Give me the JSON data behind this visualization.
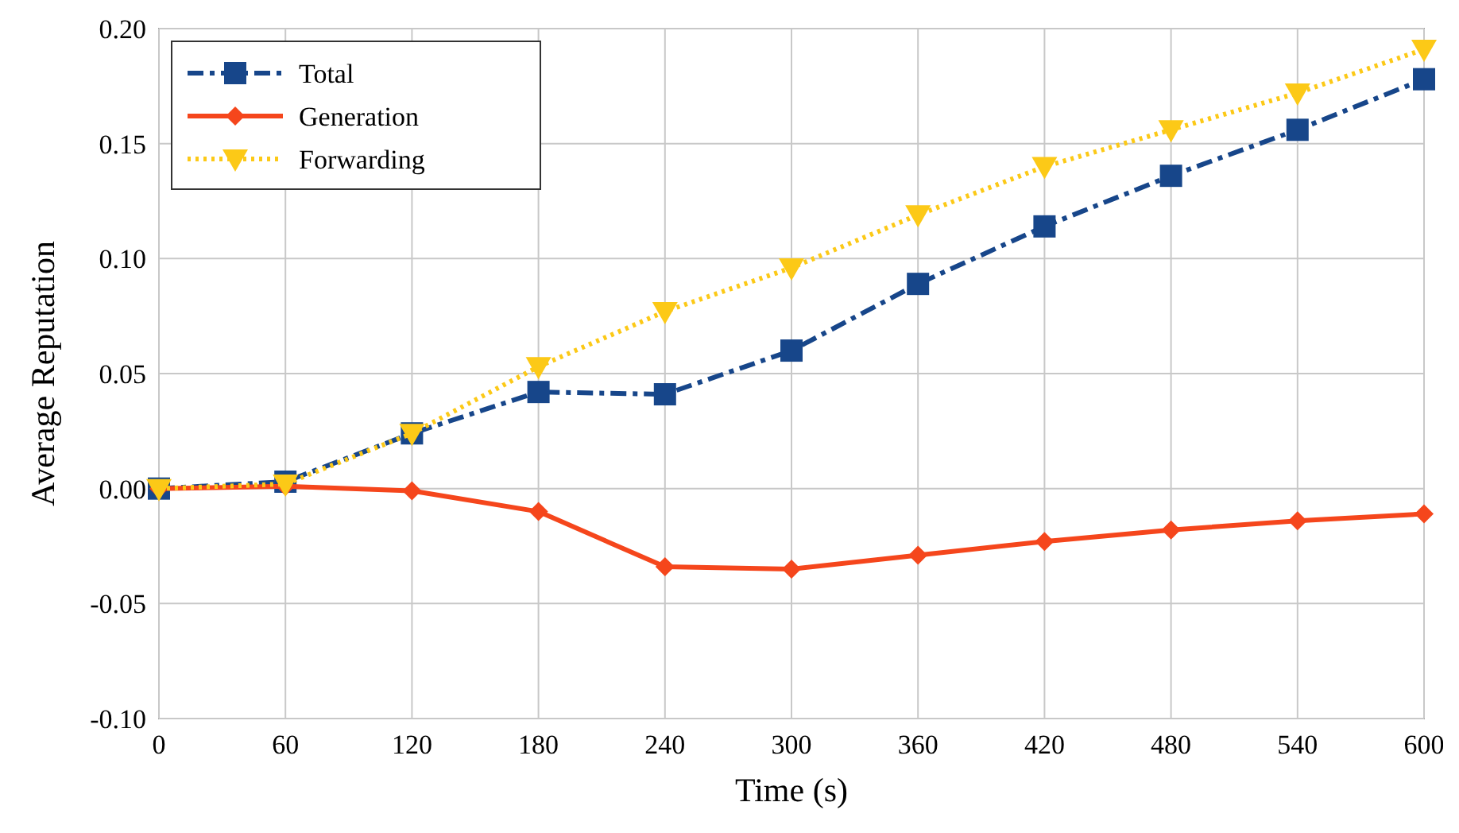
{
  "chart_data": {
    "type": "line",
    "xlabel": "Time (s)",
    "ylabel": "Average Reputation",
    "x": [
      0,
      60,
      120,
      180,
      240,
      300,
      360,
      420,
      480,
      540,
      600
    ],
    "xlim": [
      0,
      600
    ],
    "xticks": [
      0,
      60,
      120,
      180,
      240,
      300,
      360,
      420,
      480,
      540,
      600
    ],
    "ylim": [
      -0.1,
      0.2
    ],
    "yticks": [
      {
        "value": -0.1,
        "label": "-0.10"
      },
      {
        "value": -0.05,
        "label": "-0.05"
      },
      {
        "value": 0,
        "label": "0.00"
      },
      {
        "value": 0.05,
        "label": "0.05"
      },
      {
        "value": 0.1,
        "label": "0.10"
      },
      {
        "value": 0.15,
        "label": "0.15"
      },
      {
        "value": 0.2,
        "label": "0.20"
      }
    ],
    "grid": true,
    "legend": "top left",
    "series": [
      {
        "name": "Total",
        "color": "#17468a",
        "marker": "square",
        "line_style": "dashed",
        "values": [
          0,
          0.003,
          0.024,
          0.042,
          0.041,
          0.06,
          0.089,
          0.114,
          0.136,
          0.156,
          0.178
        ]
      },
      {
        "name": "Generation",
        "color": "#f5461c",
        "marker": "diamond",
        "line_style": "solid",
        "values": [
          0,
          0.001,
          -0.001,
          -0.01,
          -0.034,
          -0.035,
          -0.029,
          -0.023,
          -0.018,
          -0.014,
          -0.011
        ]
      },
      {
        "name": "Forwarding",
        "color": "#fcc917",
        "marker": "triangle",
        "line_style": "dotted",
        "values": [
          0,
          0.002,
          0.024,
          0.053,
          0.077,
          0.096,
          0.119,
          0.14,
          0.156,
          0.172,
          0.191
        ]
      }
    ]
  }
}
